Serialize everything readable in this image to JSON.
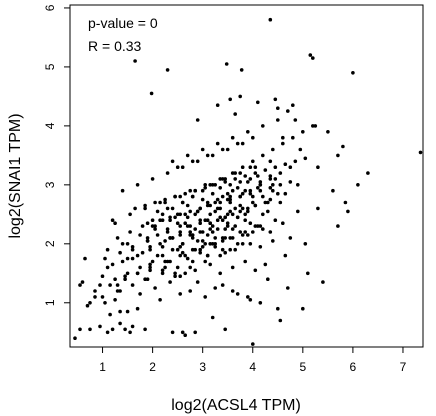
{
  "chart_data": {
    "type": "scatter",
    "title": "",
    "xlabel": "log2(ACSL4 TPM)",
    "ylabel": "log2(SNAI1 TPM)",
    "annotations": [
      "p-value = 0",
      "R = 0.33"
    ],
    "xlim": [
      0.35,
      7.4
    ],
    "ylim": [
      0.25,
      6.05
    ],
    "xticks": [
      1,
      2,
      3,
      4,
      5,
      6,
      7
    ],
    "yticks": [
      1,
      2,
      3,
      4,
      5,
      6
    ],
    "grid": false,
    "legend": "none",
    "series": [
      {
        "x": [
          4.35,
          4.5,
          5.15,
          3.48,
          3.78,
          5.2,
          2.3,
          1.65,
          6.0,
          3.55,
          3.75,
          4.1,
          3.65,
          1.98,
          2.9,
          3.3,
          4.85,
          7.35,
          6.3,
          5.9,
          5.7,
          5.3,
          5.6,
          4.6,
          4.95,
          4.45,
          4.8,
          5.85,
          0.45,
          0.55,
          0.75,
          0.95,
          1.1,
          1.2,
          1.45,
          1.55,
          1.6,
          1.85,
          2.4,
          4.55,
          5.0,
          4.0,
          2.6,
          3.2,
          1.35,
          0.6,
          0.7,
          0.85,
          1.05,
          1.25,
          1.35,
          1.5,
          1.7,
          1.75,
          2.05,
          2.15,
          2.35,
          2.55,
          2.75,
          3.05,
          3.4,
          3.7,
          3.95,
          4.3,
          4.7,
          5.1,
          5.4,
          1.15,
          1.3,
          1.45,
          1.7,
          1.85,
          1.95,
          2.25,
          2.45,
          2.65,
          2.85,
          3.15,
          3.35,
          3.6,
          3.85,
          4.05,
          4.25,
          4.65,
          1.2,
          1.5,
          1.8,
          2.1,
          2.3,
          2.5,
          2.7,
          2.95,
          3.1,
          3.25,
          3.45,
          3.55,
          3.8,
          4.15,
          4.4,
          4.75,
          5.05,
          1.6,
          1.9,
          2.2,
          2.4,
          2.6,
          2.8,
          3.0,
          3.2,
          3.4,
          3.6,
          3.9,
          4.1,
          4.35,
          4.6,
          1.4,
          1.75,
          2.05,
          2.35,
          2.55,
          2.75,
          2.95,
          3.15,
          3.3,
          3.5,
          3.7,
          3.95,
          4.2,
          4.45,
          4.9,
          2.0,
          2.2,
          2.45,
          2.65,
          2.85,
          3.05,
          3.25,
          3.45,
          3.65,
          3.85,
          4.05,
          4.3,
          4.55,
          2.1,
          2.3,
          2.5,
          2.7,
          2.9,
          3.1,
          3.3,
          3.5,
          3.75,
          4.0,
          4.25,
          4.5,
          2.6,
          2.8,
          3.0,
          3.2,
          3.4,
          3.6,
          3.8,
          4.1,
          4.4,
          3.35,
          3.55,
          3.75,
          3.95,
          4.15,
          4.35,
          3.05,
          3.25,
          2.95,
          3.45,
          3.65,
          3.85,
          2.75,
          2.55,
          3.15,
          3.35,
          3.55,
          2.4,
          2.9,
          3.1,
          3.3,
          3.5,
          3.7,
          3.9,
          2.6,
          2.8,
          3.0,
          3.2,
          3.4,
          3.6,
          3.8,
          4.0,
          4.2,
          1.9,
          2.15,
          2.35,
          2.55,
          2.75,
          2.95,
          3.15,
          3.35,
          3.55,
          3.75,
          3.95,
          4.15,
          4.35,
          4.55,
          4.75,
          1.65,
          1.85,
          2.05,
          2.25,
          2.45,
          2.65,
          2.85,
          3.05,
          3.25,
          3.45,
          3.65,
          3.85,
          4.05,
          4.25,
          4.45,
          4.65,
          4.85,
          5.05,
          1.3,
          1.55,
          1.8,
          2.0,
          2.2,
          2.4,
          2.6,
          2.8,
          3.0,
          3.2,
          3.4,
          3.6,
          3.8,
          4.0,
          4.2,
          4.4,
          4.6,
          4.8,
          5.0,
          5.2,
          1.1,
          1.4,
          1.7,
          1.95,
          2.15,
          2.35,
          2.55,
          2.75,
          2.95,
          3.15,
          3.35,
          3.55,
          3.75,
          3.95,
          4.15,
          4.35,
          4.55,
          4.75,
          0.95,
          1.25,
          1.5,
          1.75,
          2.0,
          2.2,
          2.4,
          2.6,
          2.8,
          3.0,
          3.2,
          3.4,
          3.6,
          3.8,
          4.0,
          4.2,
          4.4,
          1.05,
          1.35,
          1.6,
          1.9,
          2.1,
          2.3,
          2.5,
          2.7,
          2.9,
          3.1,
          3.3,
          3.5,
          3.7,
          3.9,
          4.1,
          0.85,
          1.15,
          1.45,
          1.7,
          1.95,
          2.25,
          2.55,
          2.85,
          3.15,
          3.45,
          3.75,
          4.05,
          0.75,
          1.0,
          1.3,
          1.6,
          1.9,
          2.2,
          2.5,
          2.8,
          3.1,
          3.4,
          3.7,
          1.2,
          1.55,
          1.85,
          2.15,
          2.45,
          2.75,
          3.05,
          3.35,
          3.65,
          3.95,
          1.4,
          1.7,
          2.0,
          2.3,
          2.6,
          2.9,
          3.2,
          3.5,
          3.8,
          1.1,
          1.5,
          1.9,
          2.3,
          2.7,
          3.1,
          3.5,
          3.9,
          4.3,
          4.9,
          5.3,
          5.7,
          6.1,
          5.5,
          5.8,
          4.7,
          5.25,
          0.55,
          0.65,
          1.0,
          1.25,
          1.35,
          2.65,
          2.85,
          3.45,
          4.5,
          4.15,
          3.9,
          3.6,
          3.25,
          2.9,
          2.55,
          2.2,
          1.95,
          1.6,
          2.4,
          2.7,
          3.0,
          3.3,
          3.6,
          3.9,
          4.2,
          4.5,
          2.5,
          2.8,
          3.1,
          3.4,
          3.7,
          4.0,
          2.35,
          2.65,
          2.95,
          3.25,
          3.55,
          3.85,
          4.15,
          2.45,
          2.75,
          3.05,
          3.35,
          3.65,
          3.95,
          2.25,
          2.55,
          2.85,
          3.15,
          3.45,
          3.75,
          4.05,
          4.35,
          2.05,
          2.35,
          2.65,
          2.95,
          3.25,
          3.55,
          3.85,
          4.15,
          4.45,
          1.95,
          2.25,
          2.55,
          2.85,
          3.15,
          3.45,
          3.75,
          4.05,
          4.35,
          4.65
        ],
        "y": [
          5.8,
          4.3,
          5.2,
          5.05,
          4.95,
          5.15,
          4.95,
          5.1,
          4.9,
          4.45,
          4.5,
          4.4,
          4.2,
          4.55,
          4.1,
          4.35,
          4.1,
          3.55,
          3.2,
          2.55,
          2.3,
          2.6,
          2.9,
          3.8,
          3.6,
          4.45,
          4.35,
          2.7,
          0.4,
          0.55,
          0.55,
          0.6,
          0.5,
          0.55,
          0.55,
          0.5,
          0.6,
          0.55,
          0.5,
          0.7,
          0.9,
          0.3,
          0.5,
          0.75,
          0.65,
          1.35,
          0.95,
          1.1,
          1.0,
          1.05,
          1.2,
          0.85,
          0.9,
          1.15,
          1.25,
          1.05,
          1.35,
          1.15,
          1.2,
          1.1,
          1.3,
          1.15,
          1.05,
          1.4,
          1.25,
          1.5,
          1.35,
          0.8,
          1.3,
          1.45,
          1.5,
          1.4,
          1.55,
          1.6,
          1.45,
          1.5,
          1.55,
          1.65,
          1.5,
          1.6,
          1.7,
          1.55,
          1.65,
          1.8,
          1.65,
          1.75,
          1.85,
          1.8,
          1.7,
          1.9,
          1.75,
          1.85,
          1.8,
          1.95,
          1.85,
          1.9,
          2.0,
          1.95,
          2.05,
          2.1,
          2.0,
          1.9,
          2.05,
          1.95,
          2.1,
          2.0,
          2.15,
          2.05,
          2.2,
          2.1,
          2.25,
          2.15,
          2.3,
          2.2,
          2.35,
          2.0,
          2.15,
          2.25,
          2.1,
          2.3,
          2.2,
          2.35,
          2.25,
          2.4,
          2.3,
          2.45,
          2.35,
          2.5,
          2.4,
          2.55,
          2.3,
          2.4,
          2.45,
          2.35,
          2.5,
          2.4,
          2.55,
          2.45,
          2.6,
          2.5,
          2.65,
          2.55,
          2.7,
          2.55,
          2.6,
          2.5,
          2.65,
          2.55,
          2.7,
          2.6,
          2.75,
          2.65,
          2.8,
          2.7,
          2.85,
          2.7,
          2.8,
          2.75,
          2.85,
          2.8,
          2.9,
          2.85,
          2.95,
          3.0,
          2.95,
          3.0,
          3.05,
          3.1,
          3.05,
          3.15,
          2.0,
          2.1,
          2.2,
          2.25,
          2.3,
          2.4,
          2.15,
          1.95,
          2.35,
          2.45,
          2.55,
          2.1,
          2.05,
          2.15,
          2.25,
          2.35,
          2.45,
          2.55,
          1.85,
          1.9,
          1.95,
          2.0,
          2.05,
          2.1,
          2.15,
          2.2,
          2.25,
          2.35,
          2.4,
          2.45,
          2.5,
          2.55,
          2.6,
          2.65,
          2.7,
          2.75,
          2.8,
          2.85,
          2.9,
          2.95,
          3.0,
          3.05,
          2.6,
          2.65,
          2.7,
          2.75,
          2.8,
          2.85,
          2.9,
          2.95,
          3.0,
          3.05,
          3.1,
          3.15,
          3.2,
          3.25,
          3.3,
          3.35,
          3.4,
          3.45,
          2.1,
          2.2,
          2.3,
          2.4,
          2.5,
          2.6,
          2.7,
          2.8,
          2.9,
          3.0,
          3.1,
          3.2,
          3.3,
          3.4,
          3.5,
          3.6,
          3.7,
          3.8,
          3.9,
          4.0,
          1.6,
          1.7,
          1.8,
          1.9,
          2.0,
          2.1,
          2.2,
          2.3,
          2.4,
          2.5,
          2.6,
          2.7,
          2.8,
          2.9,
          3.0,
          3.1,
          3.2,
          3.3,
          1.3,
          1.4,
          1.5,
          1.6,
          1.7,
          1.8,
          1.9,
          2.0,
          2.1,
          2.2,
          2.3,
          2.4,
          2.5,
          2.6,
          2.7,
          2.8,
          2.9,
          1.75,
          1.85,
          1.95,
          2.05,
          2.15,
          2.25,
          2.35,
          2.45,
          2.55,
          2.65,
          2.75,
          2.85,
          2.95,
          3.05,
          3.15,
          1.2,
          1.3,
          1.4,
          1.5,
          1.6,
          1.7,
          1.8,
          1.9,
          2.0,
          2.1,
          2.2,
          2.3,
          1.0,
          1.1,
          1.2,
          1.3,
          1.4,
          1.5,
          1.6,
          1.7,
          1.8,
          1.9,
          2.0,
          2.4,
          2.5,
          2.6,
          2.7,
          2.8,
          2.9,
          3.0,
          3.1,
          3.2,
          3.3,
          2.9,
          3.0,
          3.1,
          3.2,
          3.3,
          3.4,
          3.5,
          3.6,
          3.7,
          1.9,
          2.0,
          2.1,
          2.2,
          2.3,
          2.4,
          2.5,
          2.6,
          2.7,
          3.0,
          3.3,
          3.5,
          3.0,
          3.9,
          3.65,
          4.25,
          4.0,
          1.3,
          1.75,
          1.45,
          2.35,
          0.85,
          0.45,
          0.5,
          0.55,
          0.9,
          1.0,
          1.1,
          1.2,
          1.25,
          1.35,
          1.45,
          1.55,
          1.65,
          1.75,
          3.4,
          3.5,
          3.6,
          3.7,
          3.8,
          3.9,
          4.0,
          4.1,
          3.3,
          3.4,
          3.5,
          3.6,
          3.7,
          3.8,
          1.7,
          1.8,
          1.9,
          2.0,
          2.1,
          2.2,
          2.3,
          1.5,
          1.6,
          1.7,
          1.8,
          1.9,
          2.0,
          2.7,
          2.8,
          2.9,
          3.0,
          3.1,
          3.2,
          3.3,
          3.4,
          2.3,
          2.4,
          2.5,
          2.6,
          2.7,
          2.8,
          2.9,
          3.0,
          3.1,
          1.95,
          2.05,
          2.15,
          2.25,
          2.35,
          2.45,
          2.55,
          2.65,
          2.75,
          2.85
        ]
      }
    ]
  }
}
